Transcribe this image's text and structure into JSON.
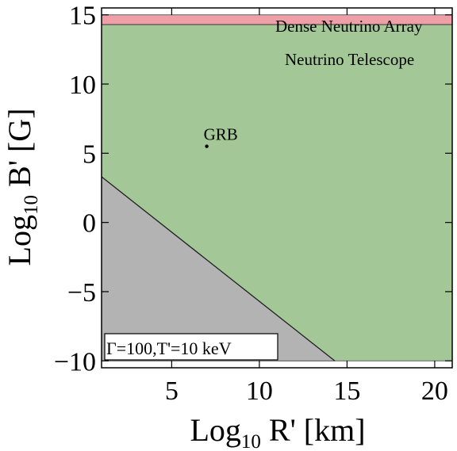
{
  "chart_data": {
    "type": "area",
    "xlabel": {
      "main": "Log",
      "sub": "10",
      "rest": " R' [km]"
    },
    "ylabel": {
      "main": "Log",
      "sub": "10",
      "rest": " B' [G]"
    },
    "xlim": [
      1,
      21
    ],
    "ylim": [
      -10.5,
      15.5
    ],
    "xticks": [
      5,
      10,
      15,
      20
    ],
    "xtick_labels": [
      "5",
      "10",
      "15",
      "20"
    ],
    "yticks": [
      -10,
      -5,
      0,
      5,
      10,
      15
    ],
    "ytick_labels": [
      "−10",
      "−5",
      "0",
      "5",
      "10",
      "15"
    ],
    "grid": false,
    "regions": [
      {
        "name": "Neutrino Telescope",
        "color": "#a3c797",
        "polygon": [
          [
            1,
            -10
          ],
          [
            21,
            -10
          ],
          [
            21,
            14.3
          ],
          [
            1,
            14.3
          ]
        ]
      },
      {
        "name": "Dense Neutrino Array",
        "color": "#ee9fa7",
        "polygon": [
          [
            1,
            14.3
          ],
          [
            21,
            14.3
          ],
          [
            21,
            15
          ],
          [
            1,
            15
          ]
        ]
      },
      {
        "name": "",
        "color": "#b3b3b3",
        "polygon": [
          [
            1,
            3.3
          ],
          [
            14.3,
            -10
          ],
          [
            1,
            -10
          ]
        ]
      }
    ],
    "boundary_line": {
      "x": [
        1,
        14.3
      ],
      "y": [
        3.3,
        -10
      ]
    },
    "points": [
      {
        "label": "GRB",
        "x": 7,
        "y": 5.5
      }
    ],
    "annotation": "Γ=100,T'=10 keV"
  }
}
